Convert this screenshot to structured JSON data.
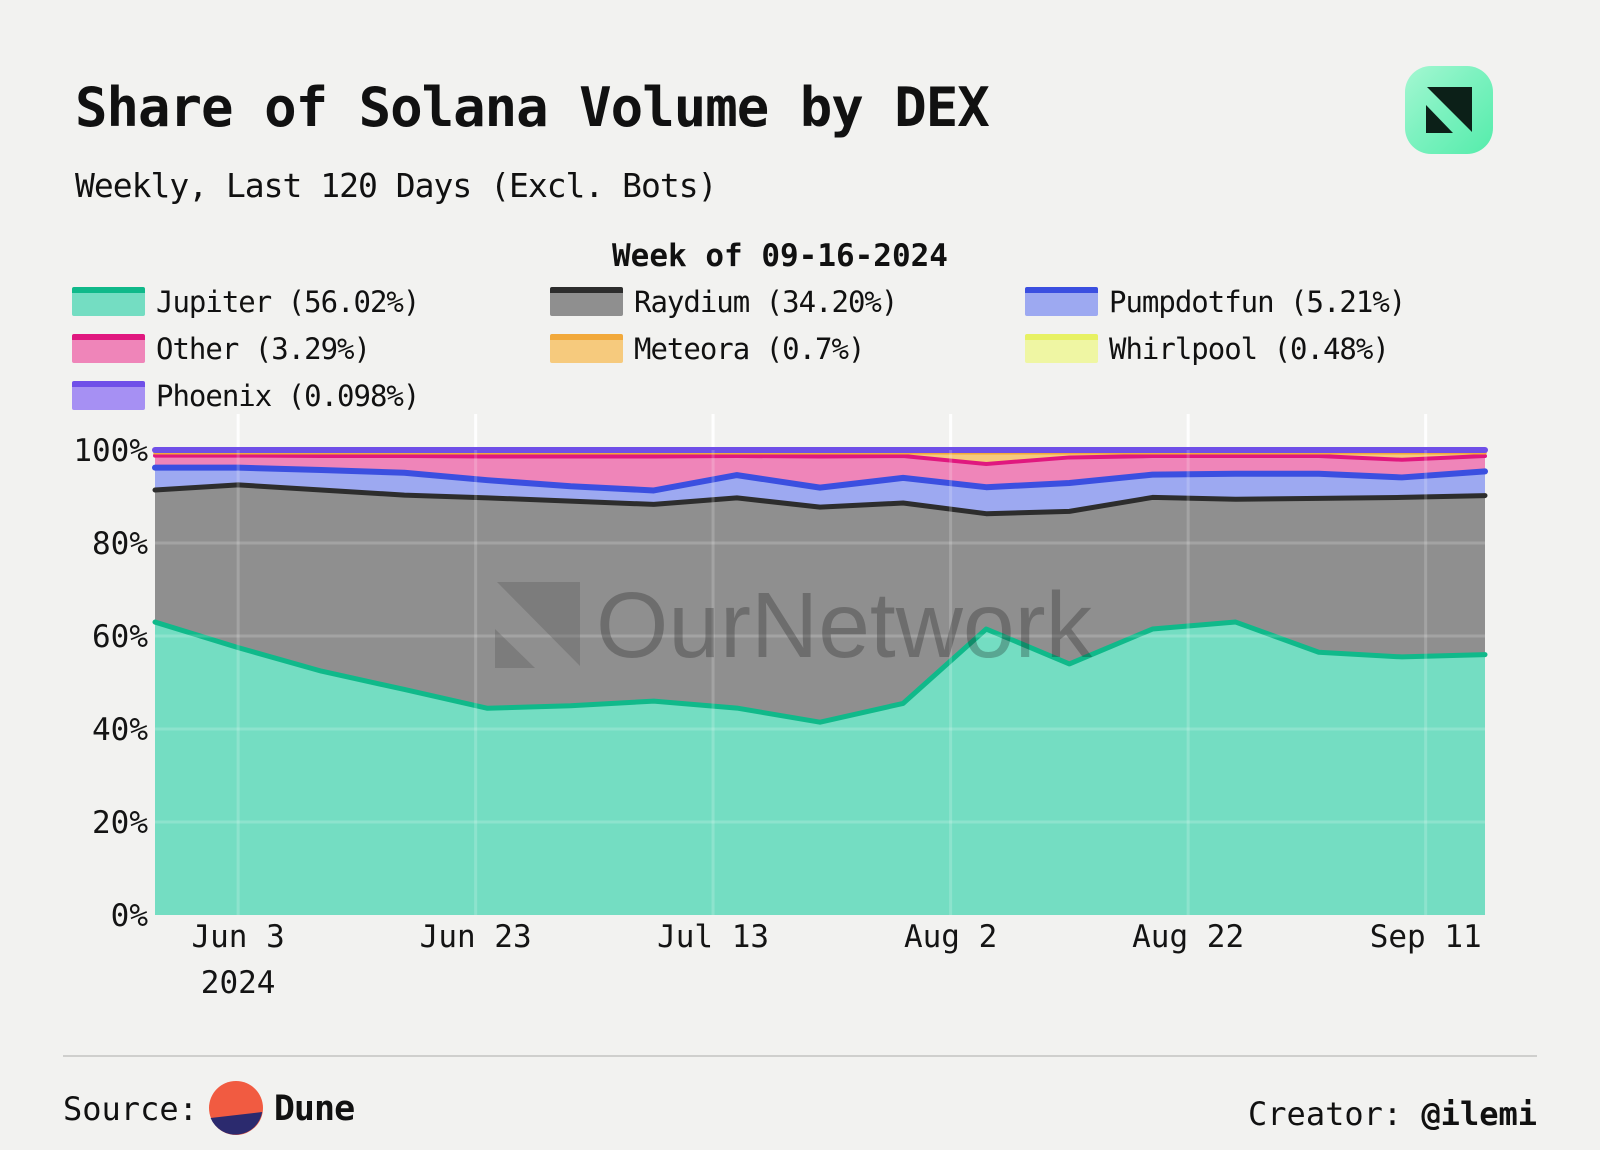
{
  "header": {
    "title": "Share of Solana Volume by DEX",
    "subtitle": "Weekly, Last 120 Days (Excl. Bots)",
    "brand_icon": "ournetwork-icon"
  },
  "watermark": {
    "text": "OurNetwork",
    "icon": "ournetwork-mark-icon"
  },
  "chart_data": {
    "type": "area",
    "stacked": true,
    "unit": "%",
    "annotation": "Week of 09-16-2024",
    "ylim": [
      0,
      100
    ],
    "grid": true,
    "legend_position": "top",
    "y_ticks": [
      0,
      20,
      40,
      60,
      80,
      100
    ],
    "x_ticks": [
      {
        "label": "Jun 3",
        "sublabel": "2024",
        "pos": 0.0625
      },
      {
        "label": "Jun 23",
        "pos": 0.2411
      },
      {
        "label": "Jul 13",
        "pos": 0.4196
      },
      {
        "label": "Aug 2",
        "pos": 0.5982
      },
      {
        "label": "Aug 22",
        "pos": 0.7768
      },
      {
        "label": "Sep 11",
        "pos": 0.9554
      }
    ],
    "x_weeks": [
      "May 27",
      "Jun 3",
      "Jun 10",
      "Jun 17",
      "Jun 24",
      "Jul 1",
      "Jul 8",
      "Jul 15",
      "Jul 22",
      "Jul 29",
      "Aug 5",
      "Aug 12",
      "Aug 19",
      "Aug 26",
      "Sep 2",
      "Sep 9",
      "Sep 16"
    ],
    "series": [
      {
        "name": "Jupiter",
        "legend_label": "Jupiter (56.02%)",
        "latest_pct": 56.02,
        "fill": "#74ddc2",
        "line": "#10b98a",
        "line_width": 5,
        "values": [
          63.0,
          57.5,
          52.5,
          48.5,
          44.5,
          45.0,
          46.0,
          44.5,
          41.5,
          45.5,
          61.5,
          54.0,
          61.5,
          63.0,
          56.5,
          55.5,
          56.0
        ]
      },
      {
        "name": "Raydium",
        "legend_label": "Raydium (34.20%)",
        "latest_pct": 34.2,
        "fill": "#8f8f8f",
        "line": "#2d2d2d",
        "line_width": 5,
        "values": [
          28.4,
          35.0,
          39.0,
          41.8,
          45.3,
          44.0,
          42.3,
          45.2,
          46.3,
          43.1,
          24.8,
          32.8,
          28.3,
          26.4,
          33.1,
          34.3,
          34.2
        ]
      },
      {
        "name": "Pumpdotfun",
        "legend_label": "Pumpdotfun (5.21%)",
        "latest_pct": 5.21,
        "fill": "#9da9f1",
        "line": "#3b4fe0",
        "line_width": 6,
        "values": [
          4.8,
          3.7,
          4.3,
          4.8,
          3.8,
          3.2,
          3.0,
          4.9,
          4.2,
          5.4,
          5.7,
          6.1,
          4.9,
          5.5,
          5.3,
          4.3,
          5.2
        ]
      },
      {
        "name": "Other",
        "legend_label": "Other (3.29%)",
        "latest_pct": 3.29,
        "fill": "#ef85b9",
        "line": "#e0187f",
        "line_width": 4,
        "values": [
          2.6,
          2.6,
          3.0,
          3.6,
          5.1,
          6.4,
          7.3,
          4.1,
          6.7,
          4.7,
          5.0,
          5.5,
          4.0,
          3.8,
          3.8,
          3.8,
          3.3
        ]
      },
      {
        "name": "Meteora",
        "legend_label": "Meteora (0.7%)",
        "latest_pct": 0.7,
        "fill": "#f6ca7d",
        "line": "#f2a93b",
        "line_width": 3.5,
        "values": [
          0.6,
          0.6,
          0.7,
          0.7,
          0.8,
          0.8,
          0.8,
          0.7,
          0.8,
          0.7,
          2.4,
          1.0,
          0.7,
          0.7,
          0.7,
          1.5,
          0.7
        ]
      },
      {
        "name": "Whirlpool",
        "legend_label": "Whirlpool (0.48%)",
        "latest_pct": 0.48,
        "fill": "#eff6a3",
        "line": "#e7f163",
        "line_width": 3.5,
        "values": [
          0.5,
          0.5,
          0.5,
          0.5,
          0.5,
          0.5,
          0.5,
          0.5,
          0.5,
          0.5,
          0.5,
          0.5,
          0.5,
          0.5,
          0.5,
          0.5,
          0.5
        ]
      },
      {
        "name": "Phoenix",
        "legend_label": "Phoenix (0.098%)",
        "latest_pct": 0.098,
        "fill": "#a690f3",
        "line": "#6f4fe8",
        "line_width": 6,
        "values": [
          0.1,
          0.1,
          0.1,
          0.1,
          0.1,
          0.1,
          0.1,
          0.1,
          0.1,
          0.1,
          0.1,
          0.1,
          0.1,
          0.1,
          0.1,
          0.1,
          0.1
        ]
      }
    ]
  },
  "footer": {
    "source_label": "Source:",
    "source_name": "Dune",
    "source_icon": "dune-logo-icon",
    "creator_label": "Creator:",
    "creator_name": "@ilemi"
  },
  "colors": {
    "background": "#f2f2f0",
    "text": "#111111",
    "grid": "#ffffff",
    "divider": "#cfcfcd",
    "watermark": "#4a4a4a",
    "icon_gradient_start": "#a5f7d2",
    "icon_gradient_end": "#55ecab",
    "icon_mark": "#0c2018",
    "dune_orange": "#f15b41",
    "dune_navy": "#2b2a6e"
  }
}
